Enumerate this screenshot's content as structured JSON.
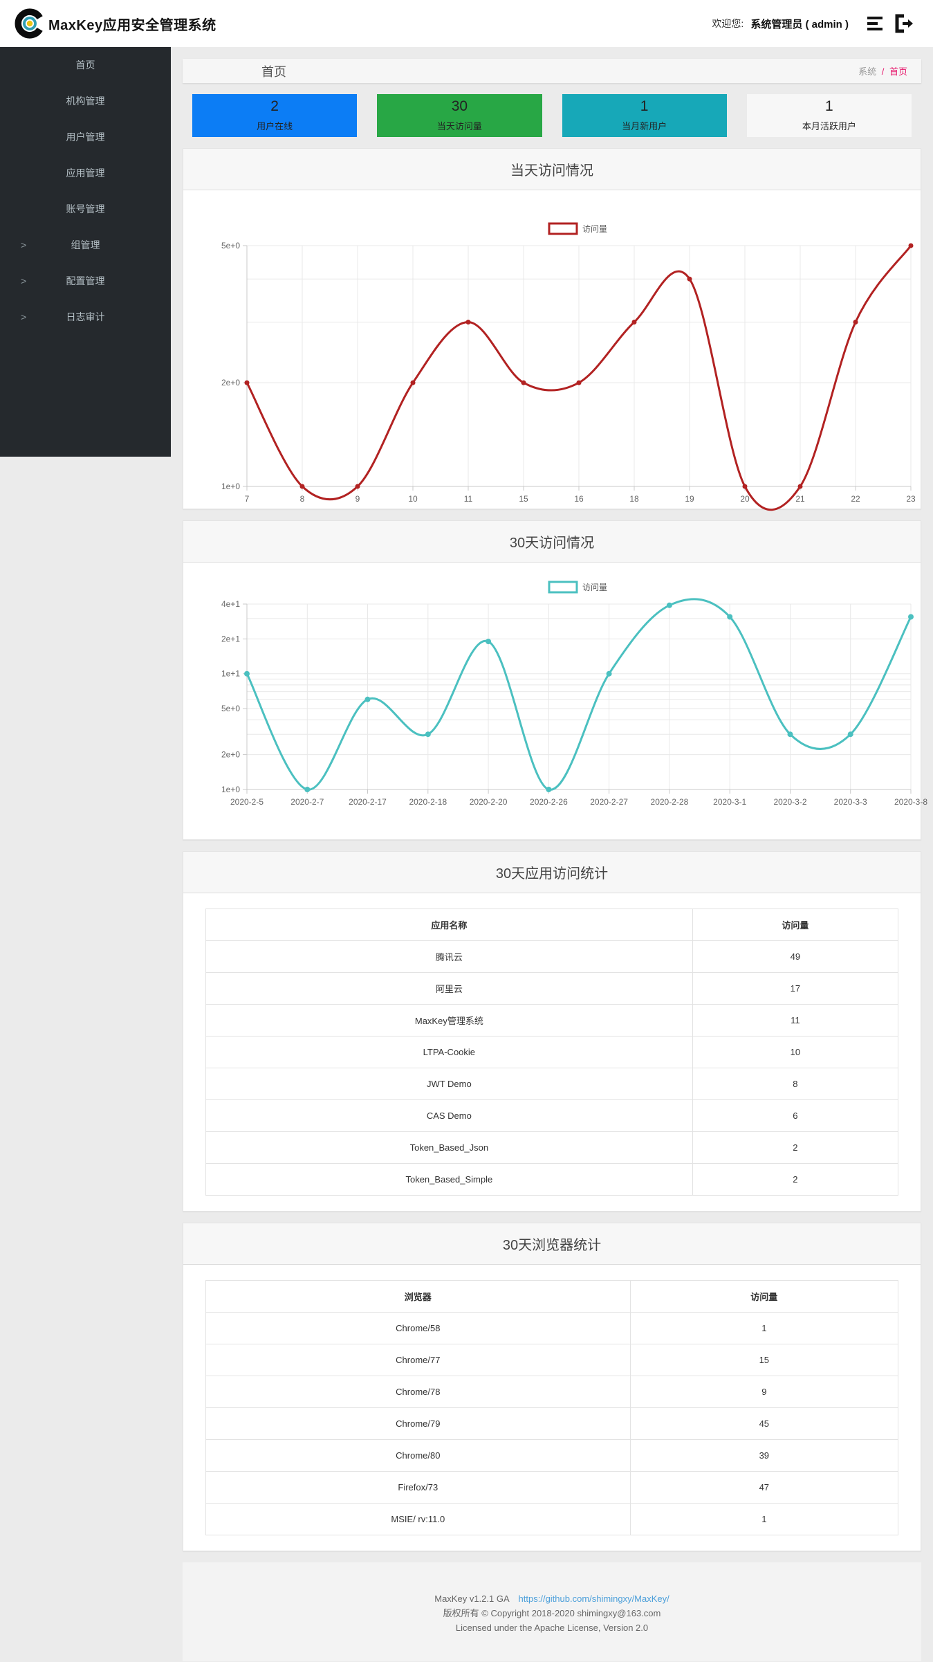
{
  "header": {
    "app_title": "MaxKey应用安全管理系统",
    "welcome_prefix": "欢迎您:",
    "user_name": "系统管理员 ( admin )",
    "icons": [
      "list-icon",
      "logout-icon"
    ]
  },
  "sidebar": {
    "items": [
      {
        "id": "home",
        "label": "首页",
        "has_children": false
      },
      {
        "id": "org",
        "label": "机构管理",
        "has_children": false
      },
      {
        "id": "user",
        "label": "用户管理",
        "has_children": false
      },
      {
        "id": "app",
        "label": "应用管理",
        "has_children": false
      },
      {
        "id": "account",
        "label": "账号管理",
        "has_children": false
      },
      {
        "id": "group",
        "label": "组管理",
        "has_children": true
      },
      {
        "id": "config",
        "label": "配置管理",
        "has_children": true
      },
      {
        "id": "audit",
        "label": "日志审计",
        "has_children": true
      }
    ]
  },
  "breadcrumb": {
    "page_title": "首页",
    "root": "系统",
    "separator": "/",
    "current": "首页"
  },
  "stats": {
    "cards": [
      {
        "id": "online-users",
        "value": "2",
        "label": "用户在线",
        "color": "#0c7df5",
        "text_color": "#222222"
      },
      {
        "id": "today-visits",
        "value": "30",
        "label": "当天访问量",
        "color": "#28a745",
        "text_color": "#222222"
      },
      {
        "id": "new-users-month",
        "value": "1",
        "label": "当月新用户",
        "color": "#17a8b8",
        "text_color": "#222222"
      },
      {
        "id": "active-users-month",
        "value": "1",
        "label": "本月活跃用户",
        "color": "#f7f7f7",
        "text_color": "#222222"
      }
    ]
  },
  "panels": {
    "today_chart_title": "当天访问情况",
    "month_chart_title": "30天访问情况",
    "app_table_title": "30天应用访问统计",
    "browser_table_title": "30天浏览器统计"
  },
  "chart_data": [
    {
      "type": "line",
      "title": "当天访问情况",
      "legend": [
        "访问量"
      ],
      "legend_position": "top-center",
      "color": "#b22222",
      "x": [
        "7",
        "8",
        "9",
        "10",
        "11",
        "15",
        "16",
        "18",
        "19",
        "20",
        "21",
        "22",
        "23"
      ],
      "values": [
        2,
        1,
        1,
        2,
        3,
        2,
        2,
        3,
        4,
        1,
        1,
        3,
        5
      ],
      "xlabel": "",
      "ylabel": "",
      "yscale": "log",
      "ylim": [
        1,
        5
      ],
      "yticks_labeled": [
        [
          5,
          "5e+0"
        ],
        [
          2,
          "2e+0"
        ],
        [
          1,
          "1e+0"
        ]
      ],
      "yticks_minor": [
        2,
        3,
        4,
        5
      ],
      "grid": true
    },
    {
      "type": "line",
      "title": "30天访问情况",
      "legend": [
        "访问量"
      ],
      "legend_position": "top-center",
      "color": "#4bc0c0",
      "x": [
        "2020-2-5",
        "2020-2-7",
        "2020-2-17",
        "2020-2-18",
        "2020-2-20",
        "2020-2-26",
        "2020-2-27",
        "2020-2-28",
        "2020-3-1",
        "2020-3-2",
        "2020-3-3",
        "2020-3-8"
      ],
      "values": [
        10,
        1,
        6,
        3,
        19,
        1,
        10,
        39,
        31,
        3,
        3,
        31
      ],
      "xlabel": "",
      "ylabel": "",
      "yscale": "log",
      "ylim": [
        1,
        40
      ],
      "yticks_labeled": [
        [
          40,
          "4e+1"
        ],
        [
          20,
          "2e+1"
        ],
        [
          10,
          "1e+1"
        ],
        [
          5,
          "5e+0"
        ],
        [
          2,
          "2e+0"
        ],
        [
          1,
          "1e+0"
        ]
      ],
      "yticks_minor": [
        2,
        3,
        4,
        5,
        6,
        7,
        8,
        9,
        10,
        20,
        30,
        40
      ],
      "grid": true
    }
  ],
  "tables": {
    "apps": {
      "headers": [
        "应用名称",
        "访问量"
      ],
      "rows": [
        [
          "腾讯云",
          "49"
        ],
        [
          "阿里云",
          "17"
        ],
        [
          "MaxKey管理系统",
          "11"
        ],
        [
          "LTPA-Cookie",
          "10"
        ],
        [
          "JWT Demo",
          "8"
        ],
        [
          "CAS Demo",
          "6"
        ],
        [
          "Token_Based_Json",
          "2"
        ],
        [
          "Token_Based_Simple",
          "2"
        ]
      ]
    },
    "browsers": {
      "headers": [
        "浏览器",
        "访问量"
      ],
      "rows": [
        [
          "Chrome/58",
          "1"
        ],
        [
          "Chrome/77",
          "15"
        ],
        [
          "Chrome/78",
          "9"
        ],
        [
          "Chrome/79",
          "45"
        ],
        [
          "Chrome/80",
          "39"
        ],
        [
          "Firefox/73",
          "47"
        ],
        [
          "MSIE/ rv:11.0",
          "1"
        ]
      ]
    }
  },
  "footer": {
    "version": "MaxKey  v1.2.1 GA",
    "link": "https://github.com/shimingxy/MaxKey/",
    "copyright": "版权所有 © Copyright 2018-2020 shimingxy@163.com",
    "license": "Licensed under the Apache License, Version 2.0"
  }
}
